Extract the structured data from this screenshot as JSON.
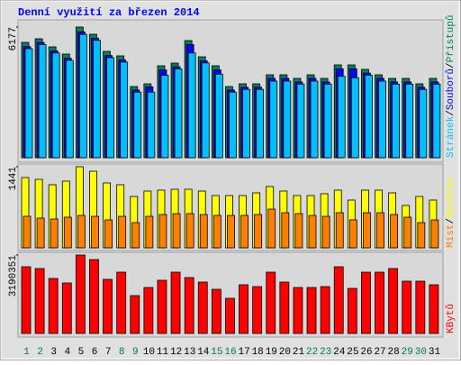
{
  "title": "Denní využití za březen 2014",
  "legend_separator": "/",
  "chart_data": [
    {
      "type": "bar",
      "ylim": [
        0,
        6177
      ],
      "yticks": [
        6177
      ],
      "series": [
        {
          "name": "Přístupů",
          "color": "#008060",
          "values": [
            5453,
            5623,
            5240,
            4899,
            6177,
            5836,
            5027,
            4814,
            3365,
            3493,
            4345,
            4473,
            5538,
            4771,
            4345,
            3365,
            3493,
            3493,
            3919,
            3919,
            3749,
            3919,
            3749,
            4388,
            4388,
            4175,
            3919,
            3749,
            3749,
            3493,
            3749
          ]
        },
        {
          "name": "Souborů",
          "color": "#0000ff",
          "values": [
            5250,
            5450,
            5050,
            4700,
            5950,
            5650,
            4830,
            4620,
            3200,
            3350,
            4150,
            4300,
            5350,
            4580,
            4150,
            3200,
            3330,
            3330,
            3750,
            3750,
            3580,
            3750,
            3580,
            4200,
            4200,
            4000,
            3750,
            3580,
            3580,
            3330,
            3580
          ]
        },
        {
          "name": "Stránek",
          "color": "#00bfff",
          "values": [
            5150,
            5350,
            4950,
            4600,
            5830,
            5550,
            4730,
            4520,
            3100,
            3100,
            3900,
            4200,
            4950,
            4480,
            3950,
            3100,
            3230,
            3230,
            3620,
            3620,
            3480,
            3620,
            3480,
            3850,
            3780,
            3900,
            3620,
            3480,
            3480,
            3230,
            3480
          ]
        }
      ]
    },
    {
      "type": "bar",
      "ylim": [
        0,
        1441
      ],
      "yticks": [
        1441
      ],
      "series": [
        {
          "name": "Návštěv",
          "color": "#ffff00",
          "values": [
            1249,
            1217,
            1121,
            1185,
            1441,
            1361,
            1153,
            1121,
            913,
            1009,
            1025,
            1041,
            1041,
            1009,
            929,
            929,
            929,
            977,
            1089,
            1009,
            929,
            929,
            961,
            1025,
            849,
            1025,
            1025,
            977,
            753,
            913,
            849
          ]
        },
        {
          "name": "Míst",
          "color": "#ff8000",
          "values": [
            560,
            528,
            512,
            544,
            576,
            560,
            496,
            560,
            448,
            560,
            592,
            608,
            608,
            592,
            576,
            576,
            576,
            592,
            688,
            624,
            608,
            576,
            560,
            624,
            496,
            624,
            624,
            592,
            544,
            448,
            496
          ]
        }
      ]
    },
    {
      "type": "bar",
      "ylim": [
        0,
        3190351
      ],
      "yticks": [
        3190351
      ],
      "categories": [
        "1",
        "2",
        "3",
        "4",
        "5",
        "6",
        "7",
        "8",
        "9",
        "10",
        "11",
        "12",
        "13",
        "14",
        "15",
        "16",
        "17",
        "18",
        "19",
        "20",
        "21",
        "22",
        "23",
        "24",
        "25",
        "26",
        "27",
        "28",
        "29",
        "30",
        "31"
      ],
      "category_colors": [
        "#008040",
        "#008040",
        "#000000",
        "#000000",
        "#000000",
        "#000000",
        "#000000",
        "#008040",
        "#008040",
        "#000000",
        "#000000",
        "#000000",
        "#000000",
        "#000000",
        "#008040",
        "#008040",
        "#000000",
        "#000000",
        "#000000",
        "#000000",
        "#000000",
        "#008040",
        "#008040",
        "#000000",
        "#000000",
        "#000000",
        "#000000",
        "#000000",
        "#008040",
        "#008040",
        "#000000"
      ],
      "series": [
        {
          "name": "KBytů",
          "color": "#ff0000",
          "values": [
            2713580,
            2640240,
            2236870,
            2053520,
            3190351,
            3006940,
            2200200,
            2493560,
            1540140,
            1870170,
            2163530,
            2493560,
            2273540,
            2090190,
            1796830,
            1430130,
            1980180,
            1906840,
            2493560,
            2090190,
            1870170,
            1870170,
            1906840,
            2713580,
            1833500,
            2493560,
            2493560,
            2640240,
            2126860,
            2126860,
            1980180
          ]
        }
      ]
    }
  ]
}
